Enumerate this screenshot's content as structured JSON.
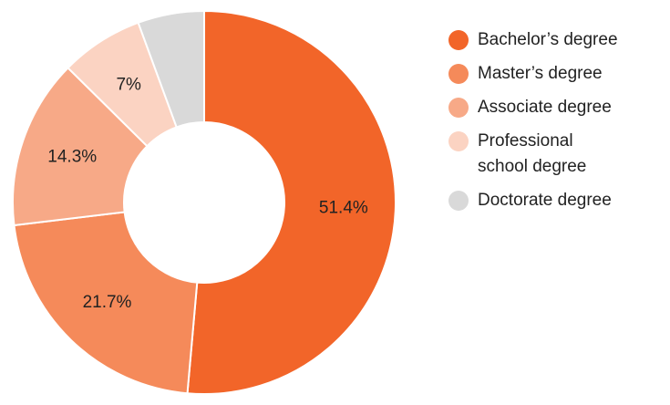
{
  "chart_data": {
    "type": "donut",
    "categories": [
      "Bachelor’s degree",
      "Master’s degree",
      "Associate degree",
      "Professional school degree",
      "Doctorate degree"
    ],
    "values": [
      51.4,
      21.7,
      14.3,
      7,
      5.6
    ],
    "value_labels": [
      "51.4%",
      "21.7%",
      "14.3%",
      "7%",
      null
    ],
    "colors": [
      "#f26529",
      "#f58a5a",
      "#f7a987",
      "#fbd3c2",
      "#d9d9d9"
    ],
    "legend": "right"
  }
}
